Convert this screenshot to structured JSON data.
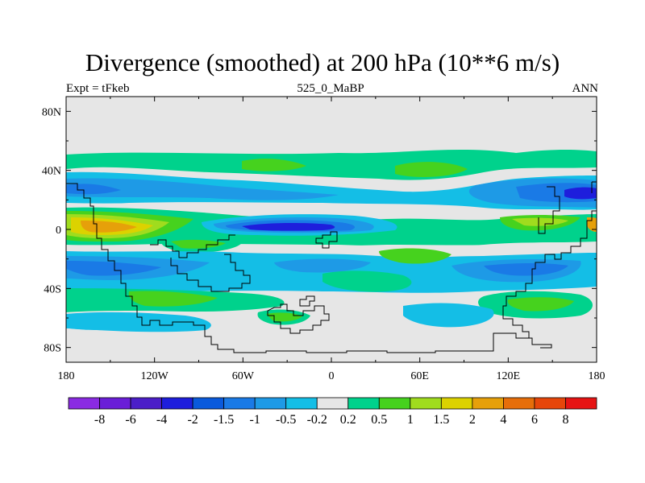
{
  "title": "Divergence (smoothed) at 200 hPa (10**6 m/s)",
  "left_label": "Expt = tFkeb",
  "center_label": "525_0_MaBP",
  "right_label": "ANN",
  "x_ticks": [
    {
      "lon": -180,
      "label": "180"
    },
    {
      "lon": -120,
      "label": "120W"
    },
    {
      "lon": -60,
      "label": "60W"
    },
    {
      "lon": 0,
      "label": "0"
    },
    {
      "lon": 60,
      "label": "60E"
    },
    {
      "lon": 120,
      "label": "120E"
    },
    {
      "lon": 180,
      "label": "180"
    }
  ],
  "y_ticks": [
    {
      "lat": 80,
      "label": "80N"
    },
    {
      "lat": 40,
      "label": "40N"
    },
    {
      "lat": 0,
      "label": "0"
    },
    {
      "lat": -40,
      "label": "40S"
    },
    {
      "lat": -80,
      "label": "80S"
    }
  ],
  "colorbar": {
    "colors": [
      "#8a2be2",
      "#6a1ed8",
      "#4b1ec8",
      "#1e1edc",
      "#0a5adc",
      "#1a7ae6",
      "#1e9ae6",
      "#14bee6",
      "#e6e6e6",
      "#00d28c",
      "#46d21e",
      "#a0dc1e",
      "#dcd200",
      "#e6a00a",
      "#e66e0a",
      "#e6460a",
      "#e61414"
    ],
    "labels": [
      "-8",
      "-6",
      "-4",
      "-2",
      "-1.5",
      "-1",
      "-0.5",
      "-0.2",
      "0.2",
      "0.5",
      "1",
      "1.5",
      "2",
      "4",
      "6",
      "8"
    ]
  },
  "palette": {
    "neg_light": "#14bee6",
    "neg_mid": "#1e9ae6",
    "neg_dark": "#1a7ae6",
    "neg_deep": "#0a5adc",
    "neg_core": "#1e1edc",
    "near_zero": "#e6e6e6",
    "pos_light": "#00d28c",
    "pos_mid": "#46d21e",
    "pos_yellow_green": "#a0dc1e",
    "pos_yellow": "#dcd200",
    "pos_orange": "#e6a00a"
  }
}
